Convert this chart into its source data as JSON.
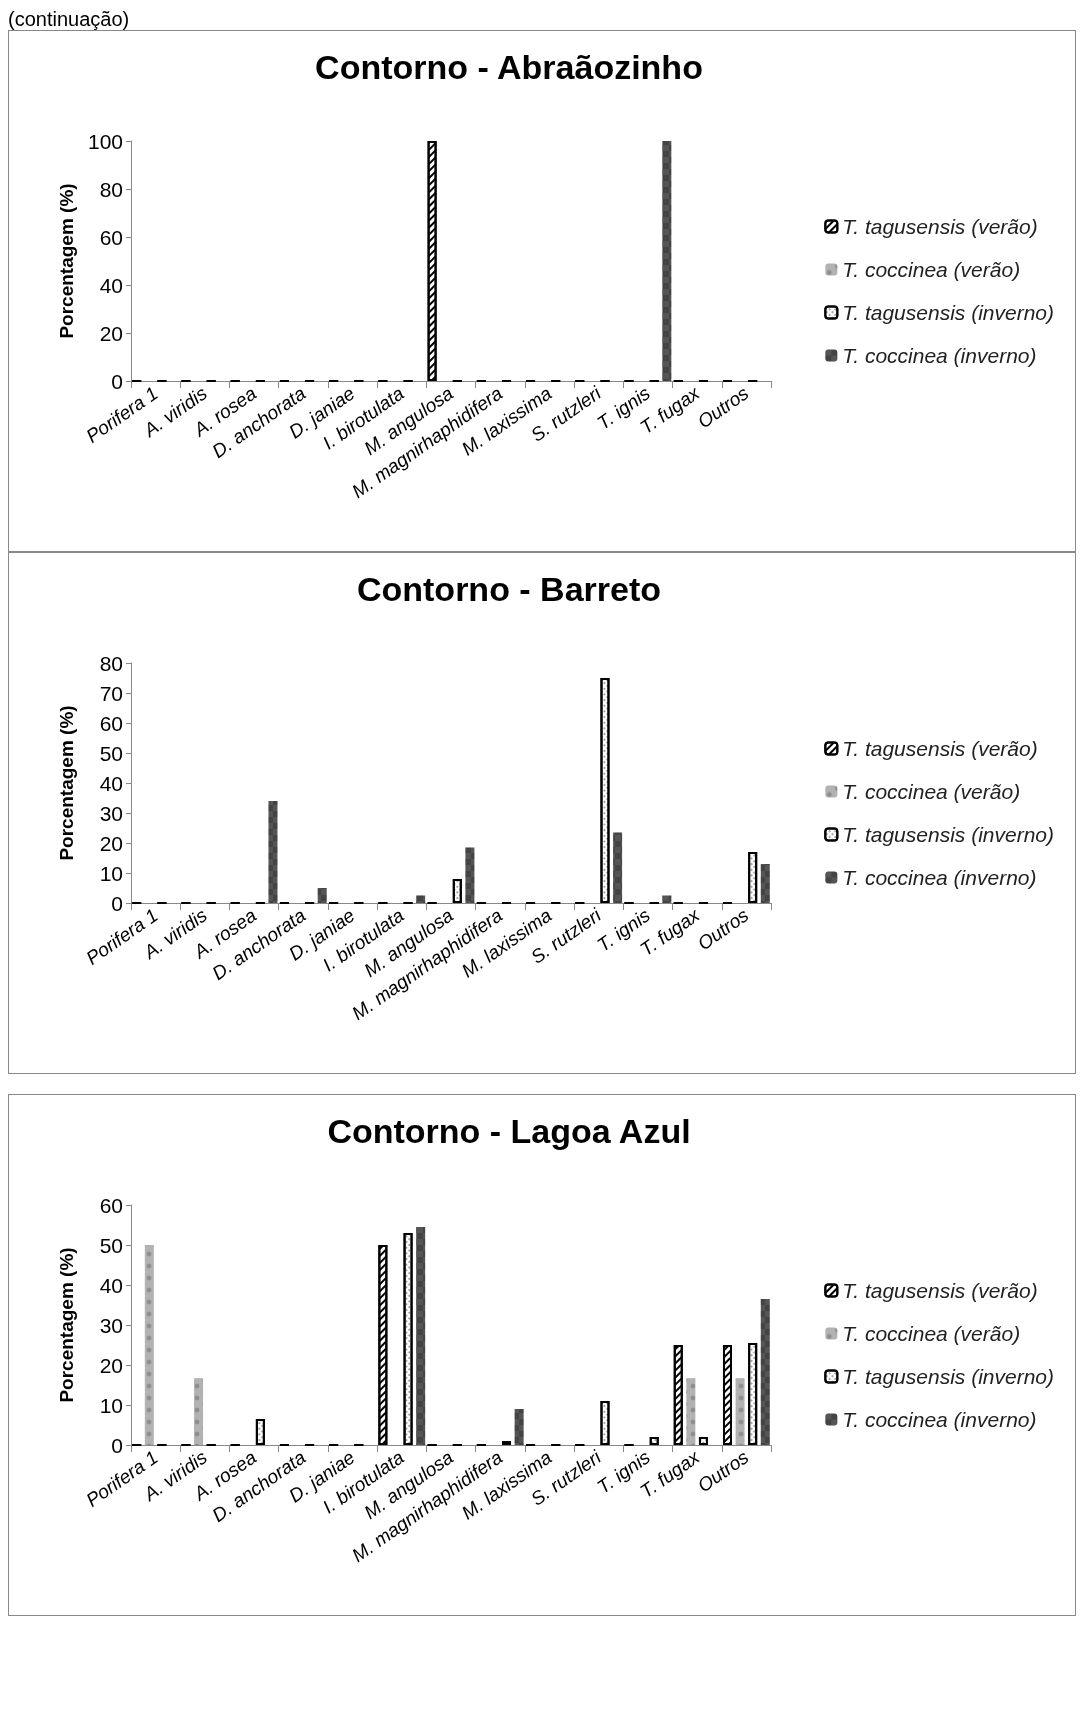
{
  "chart_data": [
    {
      "type": "bar",
      "title": "Contorno - Abraãozinho",
      "ylabel": "Porcentagem (%)",
      "annotations": [
        "(continuação)"
      ],
      "categories": [
        "Porifera 1",
        "A. viridis",
        "A. rosea",
        "D. anchorata",
        "D. janiae",
        "I. birotulata",
        "M. angulosa",
        "M. magnirhaphidifera",
        "M. laxissima",
        "S. rutzleri",
        "T. ignis",
        "T. fugax",
        "Outros"
      ],
      "ylim": [
        0,
        100
      ],
      "yticks": [
        0,
        20,
        40,
        60,
        80,
        100
      ],
      "grid": false,
      "legend": "right",
      "series": [
        {
          "name": "T. tagusensis (verão)",
          "color": "#000000",
          "values": [
            0,
            0,
            0,
            0,
            0,
            0,
            100,
            0,
            0,
            0,
            0,
            0,
            0
          ]
        },
        {
          "name": "T. coccinea (verão)",
          "color": "#b2b2b2",
          "values": [
            0,
            0,
            0,
            0,
            0,
            0,
            0,
            0,
            0,
            0,
            0,
            0,
            0
          ]
        },
        {
          "name": "T. tagusensis (inverno)",
          "color": "#000000",
          "values": [
            0,
            0,
            0,
            0,
            0,
            0,
            0,
            0,
            0,
            0,
            0,
            0,
            0
          ]
        },
        {
          "name": "T. coccinea (inverno)",
          "color": "#555555",
          "values": [
            0,
            0,
            0,
            0,
            0,
            0,
            0,
            0,
            0,
            0,
            100,
            0,
            0
          ]
        }
      ]
    },
    {
      "type": "bar",
      "title": "Contorno - Barreto",
      "ylabel": "Porcentagem (%)",
      "categories": [
        "Porifera 1",
        "A. viridis",
        "A. rosea",
        "D. anchorata",
        "D. janiae",
        "I. birotulata",
        "M. angulosa",
        "M. magnirhaphidifera",
        "M. laxissima",
        "S. rutzleri",
        "T. ignis",
        "T. fugax",
        "Outros"
      ],
      "ylim": [
        0,
        80
      ],
      "yticks": [
        0,
        10,
        20,
        30,
        40,
        50,
        60,
        70,
        80
      ],
      "grid": false,
      "legend": "right",
      "series": [
        {
          "name": "T. tagusensis (verão)",
          "color": "#000000",
          "values": [
            0,
            0,
            0,
            0,
            0,
            0,
            0,
            0,
            0,
            0,
            0,
            0,
            0
          ]
        },
        {
          "name": "T. coccinea (verão)",
          "color": "#b2b2b2",
          "values": [
            0,
            0,
            0,
            0,
            0,
            0,
            0,
            0,
            0,
            0,
            0,
            0,
            0
          ]
        },
        {
          "name": "T. tagusensis (inverno)",
          "color": "#000000",
          "values": [
            0,
            0,
            0,
            0,
            0,
            0,
            8,
            0,
            0,
            75,
            0,
            0,
            17
          ]
        },
        {
          "name": "T. coccinea (inverno)",
          "color": "#555555",
          "values": [
            0,
            0,
            34,
            5,
            0,
            2.5,
            18.5,
            0,
            0,
            23.5,
            2.5,
            0,
            13
          ]
        }
      ]
    },
    {
      "type": "bar",
      "title": "Contorno - Lagoa Azul",
      "ylabel": "Porcentagem (%)",
      "categories": [
        "Porifera 1",
        "A. viridis",
        "A. rosea",
        "D. anchorata",
        "D. janiae",
        "I. birotulata",
        "M. angulosa",
        "M. magnirhaphidifera",
        "M. laxissima",
        "S. rutzleri",
        "T. ignis",
        "T. fugax",
        "Outros"
      ],
      "ylim": [
        0,
        60
      ],
      "yticks": [
        0,
        10,
        20,
        30,
        40,
        50,
        60
      ],
      "grid": false,
      "legend": "right",
      "series": [
        {
          "name": "T. tagusensis (verão)",
          "color": "#000000",
          "values": [
            0,
            0,
            0,
            0,
            0,
            50,
            0,
            0,
            0,
            0,
            0,
            25,
            25
          ]
        },
        {
          "name": "T. coccinea (verão)",
          "color": "#b2b2b2",
          "values": [
            50,
            16.7,
            0,
            0,
            0,
            0,
            0,
            0,
            0,
            0,
            0,
            16.7,
            16.7
          ]
        },
        {
          "name": "T. tagusensis (inverno)",
          "color": "#000000",
          "values": [
            0,
            0,
            6.5,
            0,
            0,
            53,
            0,
            1,
            0,
            11,
            2,
            2,
            25.5
          ]
        },
        {
          "name": "T. coccinea (inverno)",
          "color": "#555555",
          "values": [
            0,
            0,
            0,
            0,
            0,
            54.5,
            0,
            9,
            0,
            0,
            0,
            0,
            36.5
          ]
        }
      ]
    }
  ]
}
